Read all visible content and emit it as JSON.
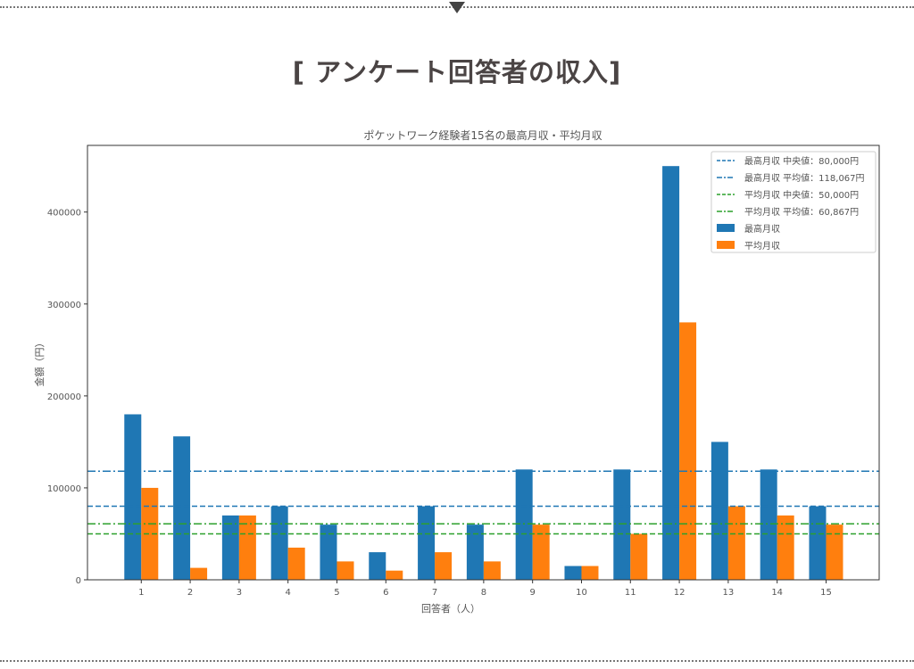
{
  "page": {
    "heading": "[ アンケート回答者の収入]",
    "divider_icon": "triangle-down-icon"
  },
  "chart_data": {
    "type": "bar",
    "title": "ポケットワーク経験者15名の最高月収・平均月収",
    "xlabel": "回答者（人）",
    "ylabel": "金額（円）",
    "categories": [
      "1",
      "2",
      "3",
      "4",
      "5",
      "6",
      "7",
      "8",
      "9",
      "10",
      "11",
      "12",
      "13",
      "14",
      "15"
    ],
    "ylim": [
      0,
      472500
    ],
    "yticks": [
      0,
      100000,
      200000,
      300000,
      400000
    ],
    "ytick_labels": [
      "0",
      "100000",
      "200000",
      "300000",
      "400000"
    ],
    "grid": false,
    "legend_position": "top-right",
    "series": [
      {
        "name": "最高月収",
        "color": "#1f77b4",
        "values": [
          180000,
          156000,
          70000,
          80000,
          60000,
          30000,
          80000,
          60000,
          120000,
          15000,
          120000,
          450000,
          150000,
          120000,
          80000
        ]
      },
      {
        "name": "平均月収",
        "color": "#ff7f0e",
        "values": [
          100000,
          13000,
          70000,
          35000,
          20000,
          10000,
          30000,
          20000,
          60000,
          15000,
          50000,
          280000,
          80000,
          70000,
          60000
        ]
      }
    ],
    "reference_lines": [
      {
        "label": "最高月収 中央値：80,000円",
        "value": 80000,
        "color": "#1f77b4",
        "style": "dashed"
      },
      {
        "label": "最高月収 平均値：118,067円",
        "value": 118067,
        "color": "#1f77b4",
        "style": "dashdot"
      },
      {
        "label": "平均月収 中央値：50,000円",
        "value": 50000,
        "color": "#2ca02c",
        "style": "dashed"
      },
      {
        "label": "平均月収 平均値：60,867円",
        "value": 60867,
        "color": "#2ca02c",
        "style": "dashdot"
      }
    ]
  }
}
